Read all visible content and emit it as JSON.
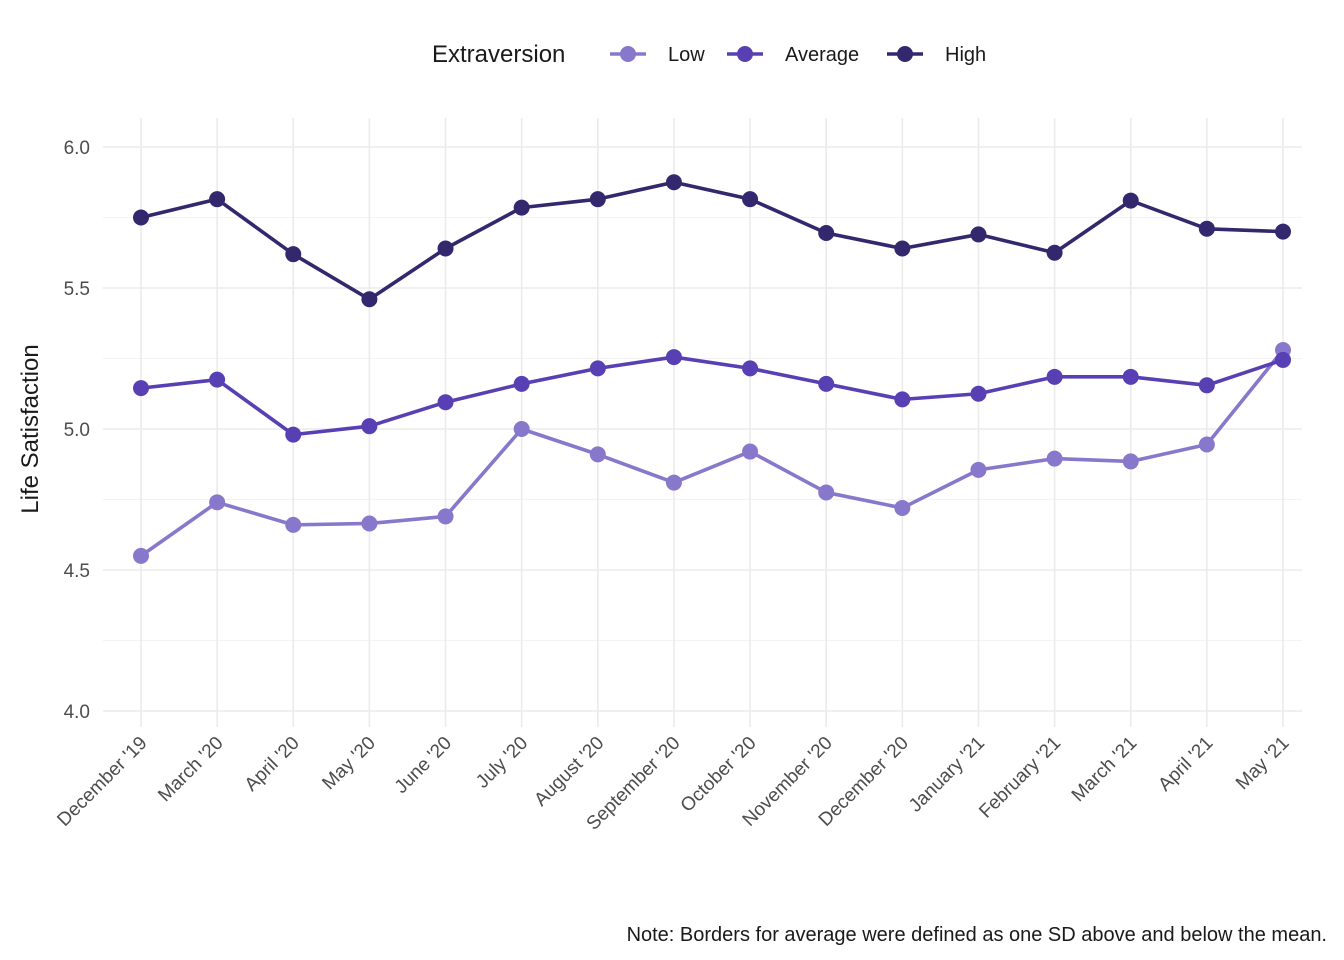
{
  "chart_data": {
    "type": "line",
    "title": "",
    "xlabel": "",
    "ylabel": "Life Satisfaction",
    "ylim": [
      3.95,
      6.1
    ],
    "yticks": [
      "4.0",
      "4.5",
      "5.0",
      "5.5",
      "6.0"
    ],
    "grid": true,
    "legend": {
      "title": "Extraversion",
      "placement": "top"
    },
    "categories": [
      "December '19",
      "March '20",
      "April '20",
      "May '20",
      "June '20",
      "July '20",
      "August '20",
      "September '20",
      "October '20",
      "November '20",
      "December '20",
      "January '21",
      "February '21",
      "March '21",
      "April '21",
      "May '21"
    ],
    "series": [
      {
        "name": "Low",
        "color": "#8878cc",
        "values": [
          4.55,
          4.74,
          4.66,
          4.665,
          4.69,
          5.0,
          4.91,
          4.81,
          4.92,
          4.775,
          4.72,
          4.855,
          4.895,
          4.885,
          4.945,
          5.28
        ]
      },
      {
        "name": "Average",
        "color": "#5840b4",
        "values": [
          5.145,
          5.175,
          4.98,
          5.01,
          5.095,
          5.16,
          5.215,
          5.255,
          5.215,
          5.16,
          5.105,
          5.125,
          5.185,
          5.185,
          5.155,
          5.245
        ]
      },
      {
        "name": "High",
        "color": "#33286e",
        "values": [
          5.75,
          5.815,
          5.62,
          5.46,
          5.64,
          5.785,
          5.815,
          5.875,
          5.815,
          5.695,
          5.64,
          5.69,
          5.625,
          5.81,
          5.71,
          5.7
        ]
      }
    ],
    "note": "Note: Borders for average were defined as one SD above and below the mean."
  }
}
